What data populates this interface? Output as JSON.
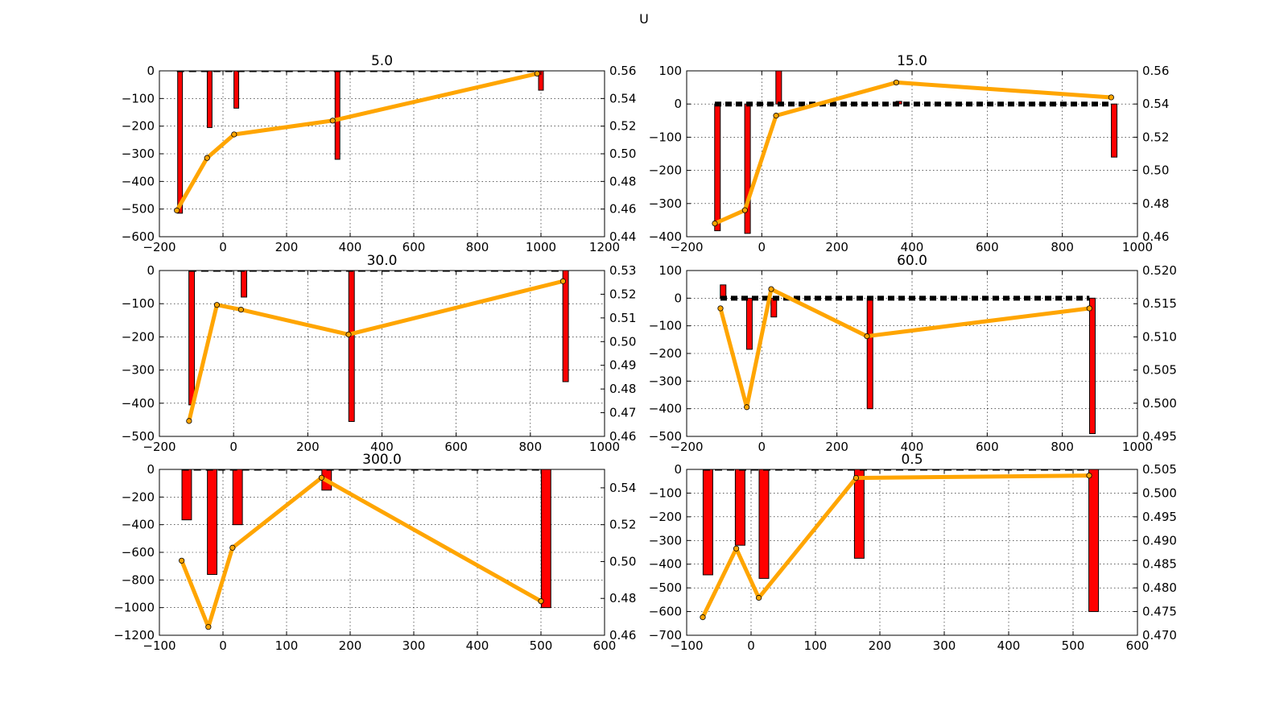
{
  "suptitle": "U",
  "chart_data": [
    {
      "type": "bar",
      "title": "5.0",
      "xlim": [
        -200,
        1200
      ],
      "xticks": [
        -200,
        0,
        200,
        400,
        600,
        800,
        1000,
        1200
      ],
      "ylim": [
        -600,
        0
      ],
      "yticks": [
        -600,
        -500,
        -400,
        -300,
        -200,
        -100,
        0
      ],
      "y2lim": [
        0.44,
        0.56
      ],
      "y2ticks": [
        0.44,
        0.46,
        0.48,
        0.5,
        0.52,
        0.54,
        0.56
      ],
      "y2_decimals": 2,
      "bar_width": 15,
      "bars": {
        "x": [
          -135,
          -42,
          42,
          360,
          1000
        ],
        "values": [
          -515,
          -205,
          -135,
          -320,
          -70
        ]
      },
      "line": {
        "x": [
          -145,
          -50,
          35,
          345,
          988
        ],
        "values": [
          0.459,
          0.497,
          0.514,
          0.524,
          0.558
        ]
      },
      "baseline": {
        "x": [
          -145,
          988
        ],
        "value": 0
      }
    },
    {
      "type": "bar",
      "title": "15.0",
      "xlim": [
        -200,
        1000
      ],
      "xticks": [
        -200,
        0,
        200,
        400,
        600,
        800,
        1000
      ],
      "ylim": [
        -400,
        100
      ],
      "yticks": [
        -400,
        -300,
        -200,
        -100,
        0,
        100
      ],
      "y2lim": [
        0.46,
        0.56
      ],
      "y2ticks": [
        0.46,
        0.48,
        0.5,
        0.52,
        0.54,
        0.56
      ],
      "y2_decimals": 2,
      "bar_width": 15,
      "bars": {
        "x": [
          -118,
          -38,
          45,
          365,
          938
        ],
        "values": [
          -382,
          -390,
          100,
          8,
          -160
        ]
      },
      "line": {
        "x": [
          -125,
          -45,
          38,
          358,
          930
        ],
        "values": [
          0.468,
          0.476,
          0.533,
          0.553,
          0.544
        ]
      },
      "baseline": {
        "x": [
          -125,
          930
        ],
        "value": 0
      }
    },
    {
      "type": "bar",
      "title": "30.0",
      "xlim": [
        -200,
        1000
      ],
      "xticks": [
        -200,
        0,
        200,
        400,
        600,
        800,
        1000
      ],
      "ylim": [
        -500,
        0
      ],
      "yticks": [
        -500,
        -400,
        -300,
        -200,
        -100,
        0
      ],
      "y2lim": [
        0.46,
        0.53
      ],
      "y2ticks": [
        0.46,
        0.47,
        0.48,
        0.49,
        0.5,
        0.51,
        0.52,
        0.53
      ],
      "y2_decimals": 2,
      "bar_width": 15,
      "bars": {
        "x": [
          -113,
          28,
          318,
          895
        ],
        "values": [
          -405,
          -80,
          -455,
          -335
        ]
      },
      "line": {
        "x": [
          -120,
          -45,
          20,
          310,
          888
        ],
        "values": [
          0.4665,
          0.5155,
          0.5135,
          0.503,
          0.5255
        ]
      },
      "baseline": {
        "x": [
          -120,
          888
        ],
        "value": 0
      }
    },
    {
      "type": "bar",
      "title": "60.0",
      "xlim": [
        -200,
        1000
      ],
      "xticks": [
        -200,
        0,
        200,
        400,
        600,
        800,
        1000
      ],
      "ylim": [
        -500,
        100
      ],
      "yticks": [
        -500,
        -400,
        -300,
        -200,
        -100,
        0,
        100
      ],
      "y2lim": [
        0.495,
        0.52
      ],
      "y2ticks": [
        0.495,
        0.5,
        0.505,
        0.51,
        0.515,
        0.52
      ],
      "y2_decimals": 3,
      "bar_width": 15,
      "bars": {
        "x": [
          -103,
          -33,
          32,
          288,
          880
        ],
        "values": [
          48,
          -185,
          -68,
          -400,
          -490
        ]
      },
      "line": {
        "x": [
          -110,
          -40,
          25,
          280,
          872
        ],
        "values": [
          0.5143,
          0.4994,
          0.5172,
          0.5101,
          0.5143
        ]
      },
      "baseline": {
        "x": [
          -110,
          872
        ],
        "value": 0
      }
    },
    {
      "type": "bar",
      "title": "300.0",
      "xlim": [
        -100,
        600
      ],
      "xticks": [
        -100,
        0,
        100,
        200,
        300,
        400,
        500,
        600
      ],
      "ylim": [
        -1200,
        0
      ],
      "yticks": [
        -1200,
        -1000,
        -800,
        -600,
        -400,
        -200,
        0
      ],
      "y2lim": [
        0.46,
        0.55
      ],
      "y2ticks": [
        0.46,
        0.48,
        0.5,
        0.52,
        0.54
      ],
      "y2_decimals": 2,
      "bar_width": 15,
      "bars": {
        "x": [
          -57,
          -17,
          23,
          163,
          508
        ],
        "values": [
          -365,
          -760,
          -400,
          -150,
          -1000
        ]
      },
      "line": {
        "x": [
          -65,
          -23,
          15,
          155,
          500
        ],
        "values": [
          0.5005,
          0.4645,
          0.5075,
          0.5455,
          0.4785
        ]
      },
      "baseline": {
        "x": [
          -65,
          500
        ],
        "value": 0
      }
    },
    {
      "type": "bar",
      "title": "0.5",
      "xlim": [
        -100,
        600
      ],
      "xticks": [
        -100,
        0,
        100,
        200,
        300,
        400,
        500,
        600
      ],
      "ylim": [
        -700,
        0
      ],
      "yticks": [
        -700,
        -600,
        -500,
        -400,
        -300,
        -200,
        -100,
        0
      ],
      "y2lim": [
        0.47,
        0.505
      ],
      "y2ticks": [
        0.47,
        0.475,
        0.48,
        0.485,
        0.49,
        0.495,
        0.5,
        0.505
      ],
      "y2_decimals": 3,
      "bar_width": 15,
      "bars": {
        "x": [
          -67,
          -17,
          20,
          168,
          532
        ],
        "values": [
          -445,
          -320,
          -460,
          -375,
          -600
        ]
      },
      "line": {
        "x": [
          -75,
          -23,
          12,
          163,
          525
        ],
        "values": [
          0.4738,
          0.4883,
          0.4779,
          0.5032,
          0.5037
        ]
      },
      "baseline": {
        "x": [
          -75,
          525
        ],
        "value": 0
      }
    }
  ]
}
